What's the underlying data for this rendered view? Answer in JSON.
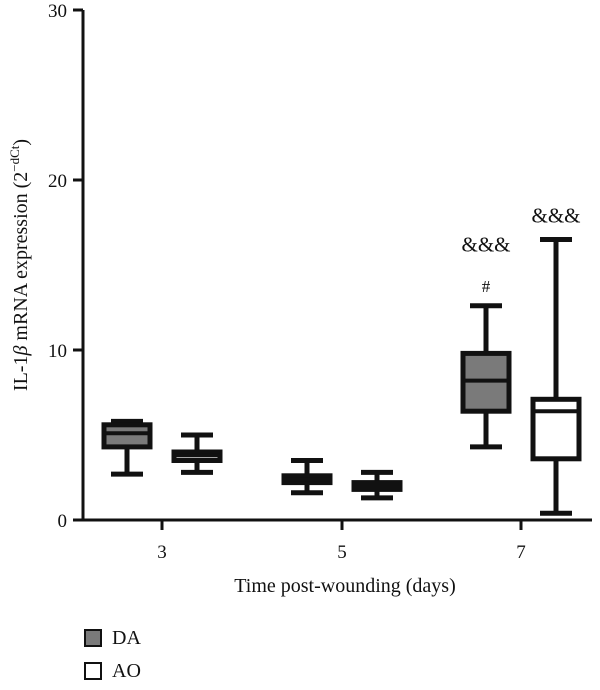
{
  "chart_data": {
    "type": "boxplot",
    "ylabel_main": "IL-1",
    "ylabel_beta": "β",
    "ylabel_rest": " mRNA expression (2",
    "ylabel_sup": "−dCt",
    "ylabel_close": ")",
    "xlabel": "Time post-wounding (days)",
    "ylim": [
      0,
      30
    ],
    "yticks": [
      "0",
      "10",
      "20",
      "30"
    ],
    "ytick_values": [
      0,
      10,
      20,
      30
    ],
    "categories": [
      "3",
      "5",
      "7"
    ],
    "grid": false,
    "legend_position": "bottom-left",
    "series": [
      {
        "name": "DA",
        "color": "#7a7a7a",
        "boxes": [
          {
            "category": "3",
            "min": 2.7,
            "q1": 4.3,
            "median": 5.1,
            "q3": 5.6,
            "max": 5.8
          },
          {
            "category": "5",
            "min": 1.6,
            "q1": 2.2,
            "median": 2.4,
            "q3": 2.6,
            "max": 3.5
          },
          {
            "category": "7",
            "min": 4.3,
            "q1": 6.4,
            "median": 8.2,
            "q3": 9.8,
            "max": 12.6
          }
        ]
      },
      {
        "name": "AO",
        "color": "#ffffff",
        "boxes": [
          {
            "category": "3",
            "min": 2.8,
            "q1": 3.5,
            "median": 3.8,
            "q3": 4.0,
            "max": 5.0
          },
          {
            "category": "5",
            "min": 1.3,
            "q1": 1.8,
            "median": 2.0,
            "q3": 2.2,
            "max": 2.8
          },
          {
            "category": "7",
            "min": 0.4,
            "q1": 3.6,
            "median": 6.4,
            "q3": 7.1,
            "max": 16.5
          }
        ]
      }
    ],
    "annotations": [
      {
        "series": "DA",
        "category": "7",
        "text": "&&&",
        "y": 15.8,
        "size": "large"
      },
      {
        "series": "DA",
        "category": "7",
        "text": "#",
        "y": 13.4,
        "size": "small"
      },
      {
        "series": "AO",
        "category": "7",
        "text": "&&&",
        "y": 17.5,
        "size": "large"
      }
    ]
  }
}
